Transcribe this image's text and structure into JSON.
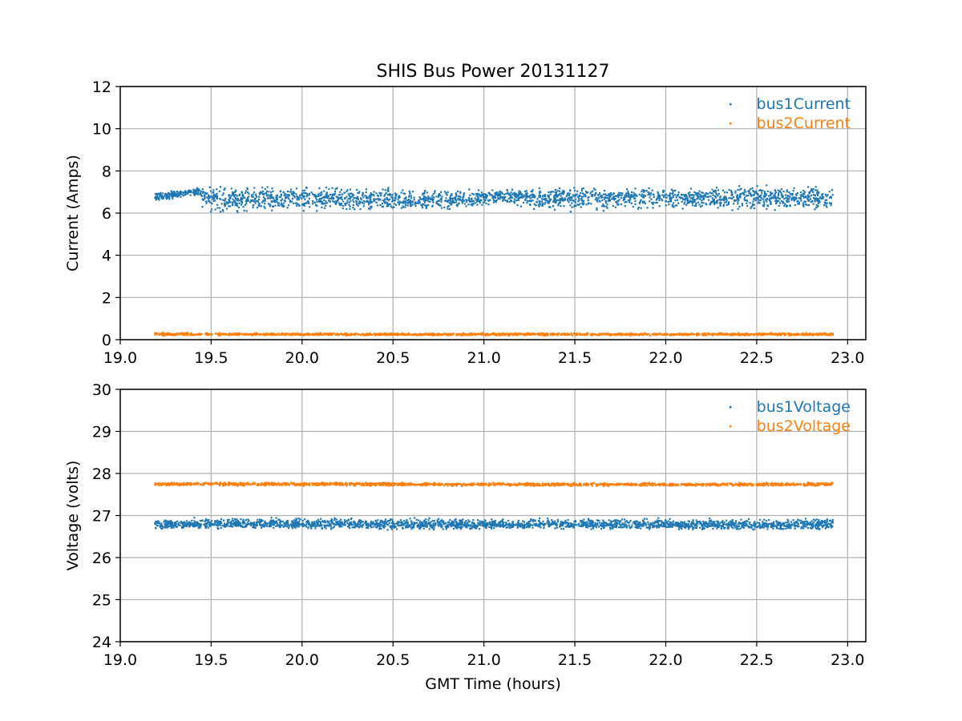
{
  "figure": {
    "title": "SHIS Bus Power 20131127",
    "background": "#ffffff"
  },
  "chart_data": [
    {
      "type": "scatter",
      "title": "SHIS Bus Power 20131127",
      "xlabel": "",
      "ylabel": "Current (Amps)",
      "xlim": [
        19.0,
        23.1
      ],
      "ylim": [
        0,
        12
      ],
      "xticks": [
        19.0,
        19.5,
        20.0,
        20.5,
        21.0,
        21.5,
        22.0,
        22.5,
        23.0
      ],
      "xtick_labels": [
        "19.0",
        "19.5",
        "20.0",
        "20.5",
        "21.0",
        "21.5",
        "22.0",
        "22.5",
        "23.0"
      ],
      "yticks": [
        0,
        2,
        4,
        6,
        8,
        10,
        12
      ],
      "ytick_labels": [
        "0",
        "2",
        "4",
        "6",
        "8",
        "10",
        "12"
      ],
      "grid": true,
      "legend": "top-right",
      "series": [
        {
          "name": "bus1Current",
          "color": "#1f77b4",
          "x": [
            19.19,
            19.3,
            19.44,
            19.45,
            19.7,
            20.0,
            20.3,
            20.6,
            20.9,
            21.15,
            21.3,
            21.6,
            21.9,
            22.2,
            22.5,
            22.7,
            22.92
          ],
          "y": [
            6.8,
            6.9,
            7.05,
            6.7,
            6.65,
            6.7,
            6.65,
            6.6,
            6.65,
            6.85,
            6.75,
            6.7,
            6.75,
            6.75,
            6.8,
            6.75,
            6.7
          ],
          "min": [
            6.5,
            6.6,
            6.7,
            5.85,
            5.9,
            5.95,
            6.0,
            6.0,
            6.05,
            6.4,
            5.95,
            6.0,
            6.05,
            6.1,
            6.0,
            5.9,
            6.0
          ],
          "max": [
            7.05,
            7.1,
            7.3,
            7.4,
            7.45,
            7.4,
            7.35,
            7.25,
            7.2,
            7.15,
            7.3,
            7.35,
            7.3,
            7.3,
            7.45,
            7.4,
            7.35
          ]
        },
        {
          "name": "bus2Current",
          "color": "#ff7f0e",
          "x": [
            19.19,
            19.5,
            20.0,
            20.5,
            21.0,
            21.5,
            22.0,
            22.5,
            22.92
          ],
          "y": [
            0.27,
            0.26,
            0.26,
            0.25,
            0.26,
            0.26,
            0.26,
            0.26,
            0.26
          ],
          "min": [
            0.17,
            0.18,
            0.18,
            0.18,
            0.18,
            0.18,
            0.18,
            0.18,
            0.17
          ],
          "max": [
            0.36,
            0.33,
            0.33,
            0.33,
            0.33,
            0.33,
            0.33,
            0.33,
            0.34
          ]
        }
      ]
    },
    {
      "type": "scatter",
      "title": "",
      "xlabel": "GMT Time (hours)",
      "ylabel": "Voltage (volts)",
      "xlim": [
        19.0,
        23.1
      ],
      "ylim": [
        24,
        30
      ],
      "xticks": [
        19.0,
        19.5,
        20.0,
        20.5,
        21.0,
        21.5,
        22.0,
        22.5,
        23.0
      ],
      "xtick_labels": [
        "19.0",
        "19.5",
        "20.0",
        "20.5",
        "21.0",
        "21.5",
        "22.0",
        "22.5",
        "23.0"
      ],
      "yticks": [
        24,
        25,
        26,
        27,
        28,
        29,
        30
      ],
      "ytick_labels": [
        "24",
        "25",
        "26",
        "27",
        "28",
        "29",
        "30"
      ],
      "grid": true,
      "legend": "top-right",
      "series": [
        {
          "name": "bus1Voltage",
          "color": "#1f77b4",
          "x": [
            19.19,
            19.3,
            19.44,
            19.7,
            20.0,
            20.5,
            21.0,
            21.5,
            22.0,
            22.5,
            22.92
          ],
          "y": [
            26.8,
            26.78,
            26.8,
            26.8,
            26.8,
            26.8,
            26.78,
            26.8,
            26.78,
            26.78,
            26.8
          ],
          "min": [
            26.65,
            26.65,
            26.65,
            26.65,
            26.65,
            26.65,
            26.65,
            26.65,
            26.65,
            26.62,
            26.62
          ],
          "max": [
            26.95,
            26.92,
            26.98,
            26.98,
            26.97,
            26.97,
            26.95,
            26.97,
            26.96,
            26.97,
            26.97
          ]
        },
        {
          "name": "bus2Voltage",
          "color": "#ff7f0e",
          "x": [
            19.19,
            19.5,
            20.0,
            20.5,
            21.0,
            21.5,
            22.0,
            22.5,
            22.92
          ],
          "y": [
            27.75,
            27.75,
            27.75,
            27.75,
            27.74,
            27.74,
            27.74,
            27.74,
            27.75
          ],
          "min": [
            27.7,
            27.69,
            27.69,
            27.69,
            27.69,
            27.69,
            27.69,
            27.69,
            27.69
          ],
          "max": [
            27.79,
            27.8,
            27.8,
            27.79,
            27.79,
            27.79,
            27.79,
            27.79,
            27.8
          ]
        }
      ]
    }
  ]
}
